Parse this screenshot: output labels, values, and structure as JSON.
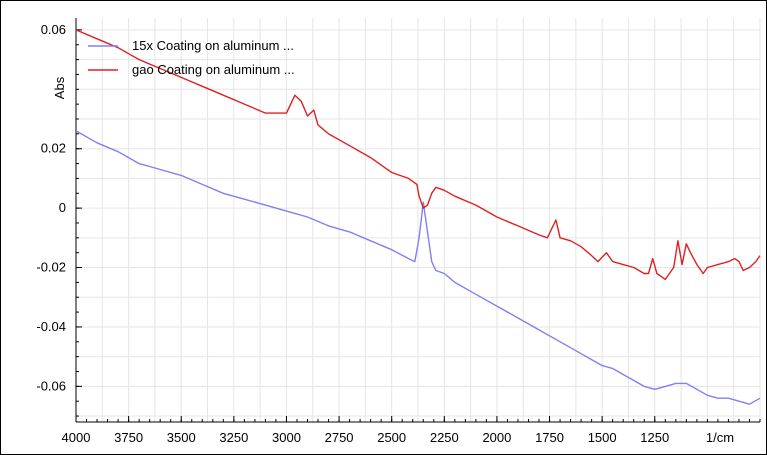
{
  "chart_data": {
    "type": "line",
    "xlabel": "1/cm",
    "ylabel": "Abs",
    "xlim": [
      4000,
      750
    ],
    "ylim": [
      -0.072,
      0.064
    ],
    "x_ticks": [
      {
        "value": 4000,
        "label": "4000"
      },
      {
        "value": 3750,
        "label": "3750"
      },
      {
        "value": 3500,
        "label": "3500"
      },
      {
        "value": 3250,
        "label": "3250"
      },
      {
        "value": 3000,
        "label": "3000"
      },
      {
        "value": 2750,
        "label": "2750"
      },
      {
        "value": 2500,
        "label": "2500"
      },
      {
        "value": 2250,
        "label": "2250"
      },
      {
        "value": 2000,
        "label": "2000"
      },
      {
        "value": 1750,
        "label": "1750"
      },
      {
        "value": 1500,
        "label": "1500"
      },
      {
        "value": 1250,
        "label": "1250"
      }
    ],
    "y_ticks": [
      {
        "value": 0.06,
        "label": "0.06"
      },
      {
        "value": 0.02,
        "label": "0.02"
      },
      {
        "value": 0,
        "label": "0"
      },
      {
        "value": -0.02,
        "label": "-0.02"
      },
      {
        "value": -0.04,
        "label": "-0.04"
      },
      {
        "value": -0.06,
        "label": "-0.06"
      }
    ],
    "grid": true,
    "legend_position": "top-left",
    "series": [
      {
        "name": "15x Coating on aluminum ...",
        "color": "#8080f0",
        "points": [
          [
            4000,
            0.026
          ],
          [
            3900,
            0.022
          ],
          [
            3800,
            0.019
          ],
          [
            3750,
            0.017
          ],
          [
            3700,
            0.015
          ],
          [
            3650,
            0.014
          ],
          [
            3600,
            0.013
          ],
          [
            3500,
            0.011
          ],
          [
            3400,
            0.008
          ],
          [
            3300,
            0.005
          ],
          [
            3200,
            0.003
          ],
          [
            3100,
            0.001
          ],
          [
            3000,
            -0.001
          ],
          [
            2900,
            -0.003
          ],
          [
            2800,
            -0.006
          ],
          [
            2700,
            -0.008
          ],
          [
            2600,
            -0.011
          ],
          [
            2500,
            -0.014
          ],
          [
            2420,
            -0.017
          ],
          [
            2390,
            -0.018
          ],
          [
            2370,
            -0.01
          ],
          [
            2350,
            0.002
          ],
          [
            2330,
            -0.008
          ],
          [
            2310,
            -0.018
          ],
          [
            2290,
            -0.021
          ],
          [
            2250,
            -0.022
          ],
          [
            2200,
            -0.025
          ],
          [
            2100,
            -0.029
          ],
          [
            2000,
            -0.033
          ],
          [
            1900,
            -0.037
          ],
          [
            1800,
            -0.041
          ],
          [
            1700,
            -0.045
          ],
          [
            1650,
            -0.047
          ],
          [
            1600,
            -0.049
          ],
          [
            1550,
            -0.051
          ],
          [
            1500,
            -0.053
          ],
          [
            1450,
            -0.054
          ],
          [
            1400,
            -0.056
          ],
          [
            1350,
            -0.058
          ],
          [
            1300,
            -0.06
          ],
          [
            1250,
            -0.061
          ],
          [
            1200,
            -0.06
          ],
          [
            1150,
            -0.059
          ],
          [
            1100,
            -0.059
          ],
          [
            1050,
            -0.061
          ],
          [
            1000,
            -0.063
          ],
          [
            950,
            -0.064
          ],
          [
            900,
            -0.064
          ],
          [
            850,
            -0.065
          ],
          [
            800,
            -0.066
          ],
          [
            750,
            -0.064
          ]
        ]
      },
      {
        "name": "gao Coating on aluminum ...",
        "color": "#e02020",
        "points": [
          [
            4000,
            0.06
          ],
          [
            3900,
            0.057
          ],
          [
            3800,
            0.054
          ],
          [
            3700,
            0.05
          ],
          [
            3600,
            0.047
          ],
          [
            3500,
            0.044
          ],
          [
            3400,
            0.041
          ],
          [
            3300,
            0.038
          ],
          [
            3200,
            0.035
          ],
          [
            3100,
            0.032
          ],
          [
            3000,
            0.032
          ],
          [
            2960,
            0.038
          ],
          [
            2930,
            0.036
          ],
          [
            2900,
            0.031
          ],
          [
            2870,
            0.033
          ],
          [
            2850,
            0.028
          ],
          [
            2800,
            0.025
          ],
          [
            2700,
            0.021
          ],
          [
            2600,
            0.017
          ],
          [
            2500,
            0.012
          ],
          [
            2420,
            0.01
          ],
          [
            2380,
            0.008
          ],
          [
            2370,
            0.004
          ],
          [
            2350,
            0.0
          ],
          [
            2330,
            0.001
          ],
          [
            2310,
            0.005
          ],
          [
            2290,
            0.007
          ],
          [
            2250,
            0.006
          ],
          [
            2200,
            0.004
          ],
          [
            2100,
            0.001
          ],
          [
            2000,
            -0.003
          ],
          [
            1900,
            -0.006
          ],
          [
            1800,
            -0.009
          ],
          [
            1760,
            -0.01
          ],
          [
            1740,
            -0.007
          ],
          [
            1720,
            -0.004
          ],
          [
            1700,
            -0.01
          ],
          [
            1650,
            -0.011
          ],
          [
            1600,
            -0.013
          ],
          [
            1550,
            -0.016
          ],
          [
            1520,
            -0.018
          ],
          [
            1480,
            -0.015
          ],
          [
            1450,
            -0.018
          ],
          [
            1400,
            -0.019
          ],
          [
            1350,
            -0.02
          ],
          [
            1300,
            -0.022
          ],
          [
            1280,
            -0.022
          ],
          [
            1260,
            -0.017
          ],
          [
            1240,
            -0.022
          ],
          [
            1200,
            -0.024
          ],
          [
            1160,
            -0.02
          ],
          [
            1140,
            -0.011
          ],
          [
            1120,
            -0.019
          ],
          [
            1100,
            -0.012
          ],
          [
            1080,
            -0.015
          ],
          [
            1050,
            -0.019
          ],
          [
            1020,
            -0.022
          ],
          [
            1000,
            -0.02
          ],
          [
            950,
            -0.019
          ],
          [
            900,
            -0.018
          ],
          [
            870,
            -0.017
          ],
          [
            850,
            -0.018
          ],
          [
            830,
            -0.021
          ],
          [
            800,
            -0.02
          ],
          [
            770,
            -0.018
          ],
          [
            750,
            -0.016
          ]
        ]
      }
    ]
  }
}
